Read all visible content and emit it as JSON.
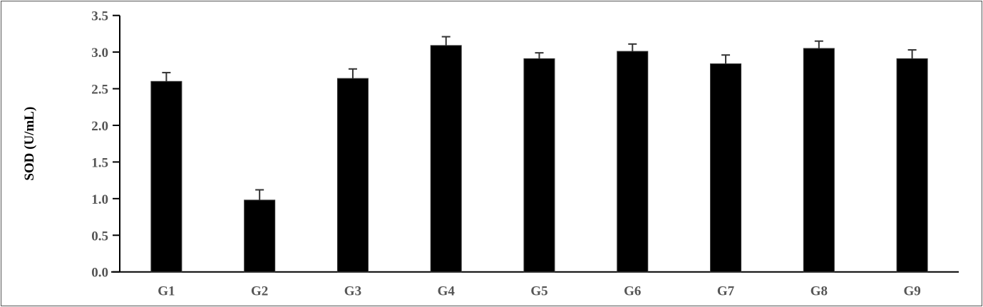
{
  "chart_data": {
    "type": "bar",
    "title": "",
    "xlabel": "",
    "ylabel": "SOD (U/mL)",
    "ylim": [
      0,
      3.5
    ],
    "yticks": [
      "0.0",
      "0.5",
      "1.0",
      "1.5",
      "2.0",
      "2.5",
      "3.0",
      "3.5"
    ],
    "categories": [
      "G1",
      "G2",
      "G3",
      "G4",
      "G5",
      "G6",
      "G7",
      "G8",
      "G9"
    ],
    "values": [
      2.6,
      0.98,
      2.64,
      3.09,
      2.91,
      3.01,
      2.84,
      3.05,
      2.91
    ],
    "error_upper": [
      0.12,
      0.14,
      0.13,
      0.12,
      0.08,
      0.1,
      0.12,
      0.1,
      0.12
    ],
    "grid": false,
    "bar_color": "#000000"
  }
}
